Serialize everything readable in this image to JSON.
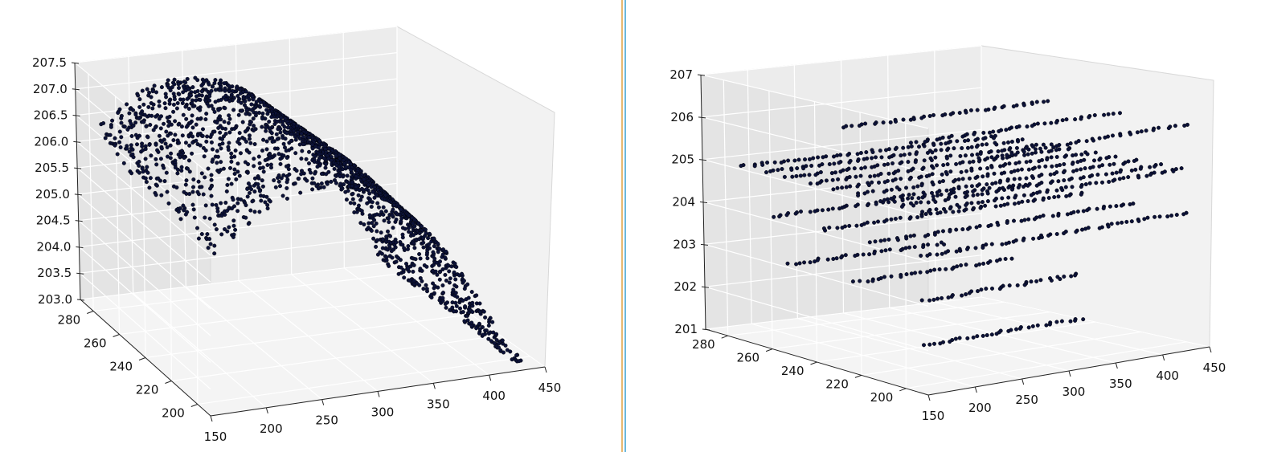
{
  "colors": {
    "point": "#0c1238",
    "pane": "#ececec",
    "pane_dark": "#e4e4e4",
    "grid": "#ffffff",
    "divider_a": "#e0a040",
    "divider_b": "#3aa0d0"
  },
  "chart_data": [
    {
      "type": "scatter",
      "subtype": "3d",
      "title": "",
      "xlabel": "",
      "ylabel": "",
      "zlabel": "",
      "x_ticks": [
        "150",
        "200",
        "250",
        "300",
        "350",
        "400",
        "450"
      ],
      "y_ticks": [
        "200",
        "220",
        "240",
        "260",
        "280"
      ],
      "z_ticks": [
        "203.0",
        "203.5",
        "204.0",
        "204.5",
        "205.0",
        "205.5",
        "206.0",
        "206.5",
        "207.0",
        "207.5"
      ],
      "xlim": [
        150,
        450
      ],
      "ylim": [
        190,
        290
      ],
      "zlim": [
        203.0,
        207.5
      ],
      "grid": true,
      "surface": {
        "shape": "ridge",
        "peak_z": 207.0,
        "peak_x": 250,
        "low_z": 203.0,
        "x_range": [
          160,
          440
        ],
        "y_range": [
          195,
          290
        ]
      }
    },
    {
      "type": "scatter",
      "subtype": "3d",
      "title": "",
      "xlabel": "",
      "ylabel": "",
      "zlabel": "",
      "x_ticks": [
        "150",
        "200",
        "250",
        "300",
        "350",
        "400",
        "450"
      ],
      "y_ticks": [
        "200",
        "220",
        "240",
        "260",
        "280"
      ],
      "z_ticks": [
        "201",
        "202",
        "203",
        "204",
        "205",
        "206",
        "207"
      ],
      "xlim": [
        150,
        450
      ],
      "ylim": [
        190,
        290
      ],
      "zlim": [
        201,
        207
      ],
      "grid": true,
      "layers": [
        {
          "z": 202,
          "x_range": [
            160,
            330
          ],
          "rows": 1
        },
        {
          "z": 203,
          "x_range": [
            160,
            330
          ],
          "rows": 3
        },
        {
          "z": 204,
          "x_range": [
            160,
            440
          ],
          "rows": 4
        },
        {
          "z": 205,
          "x_range": [
            160,
            440
          ],
          "rows": 9
        },
        {
          "z": 206,
          "x_range": [
            220,
            440
          ],
          "rows": 3
        }
      ]
    }
  ]
}
